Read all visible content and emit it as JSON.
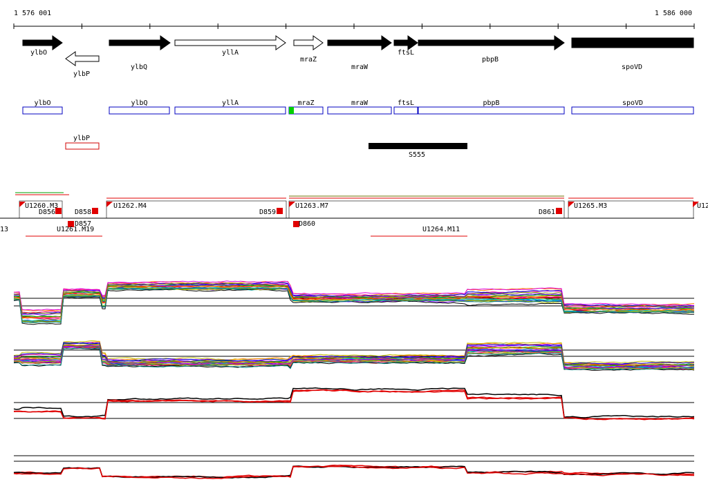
{
  "ruler": {
    "start": "1 576 001",
    "end": "1 586 000"
  },
  "gene_arrows": [
    {
      "label": "ylbO"
    },
    {
      "label": "ylbP"
    },
    {
      "label": "ylbQ"
    },
    {
      "label": "yllA"
    },
    {
      "label": "mraZ"
    },
    {
      "label": "mraW"
    },
    {
      "label": "ftsL"
    },
    {
      "label": "pbpB"
    },
    {
      "label": "spoVD"
    }
  ],
  "gene_boxes": [
    {
      "label": "ylbO"
    },
    {
      "label": "ylbQ"
    },
    {
      "label": "yllA"
    },
    {
      "label": "mraZ"
    },
    {
      "label": "mraW"
    },
    {
      "label": "ftsL"
    },
    {
      "label": "pbpB"
    },
    {
      "label": "spoVD"
    },
    {
      "label": "ylbP"
    }
  ],
  "feature": {
    "label": "S555"
  },
  "segments": [
    {
      "label": "U1260.M3"
    },
    {
      "label": "D856"
    },
    {
      "label": "D858"
    },
    {
      "label": "U1262.M4"
    },
    {
      "label": "D859"
    },
    {
      "label": "U1263.M7"
    },
    {
      "label": "D861"
    },
    {
      "label": "U1265.M3"
    },
    {
      "label": "U12"
    },
    {
      "label": "13"
    },
    {
      "label": "D857"
    },
    {
      "label": "U1261.M19"
    },
    {
      "label": "D860"
    },
    {
      "label": "U1264.M11"
    }
  ]
}
